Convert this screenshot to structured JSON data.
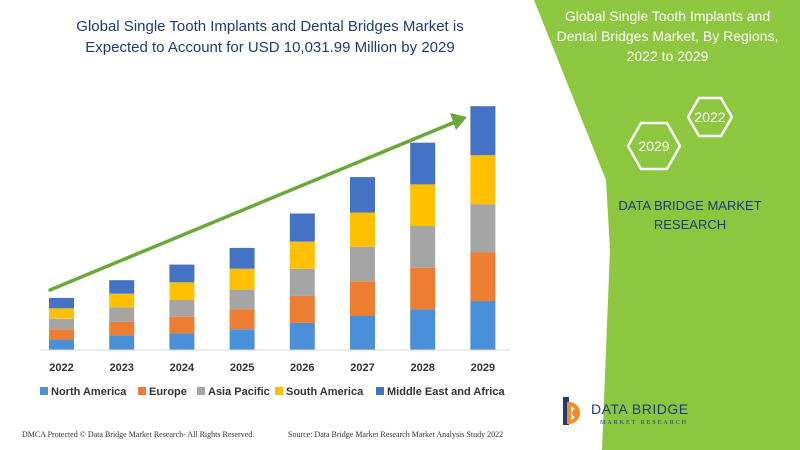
{
  "header": {
    "title_line1": "Global Single Tooth Implants and Dental Bridges Market is",
    "title_line2": "Expected to Account for USD 10,031.99 Million by 2029"
  },
  "panel": {
    "title_line1": "Global Single Tooth Implants and",
    "title_line2": "Dental Bridges Market, By Regions,",
    "title_line3": "2022 to 2029",
    "hex_top": "2022",
    "hex_bottom": "2029",
    "brand_line1": "DATA BRIDGE MARKET",
    "brand_line2": "RESEARCH",
    "bg_color": "#8dc63f"
  },
  "footer": {
    "dmca": "DMCA Protected © Data Bridge Market Research- All Rights Reserved.",
    "source": "Source: Data Bridge Market Research Market Analysis Study 2022"
  },
  "logo": {
    "name": "DATA BRIDGE",
    "tagline": "MARKET RESEARCH"
  },
  "chart_data": {
    "type": "bar",
    "stacked": true,
    "title": "Global Single Tooth Implants and Dental Bridges Market is Expected to Account for USD 10,031.99 Million by 2029",
    "categories": [
      "2022",
      "2023",
      "2024",
      "2025",
      "2026",
      "2027",
      "2028",
      "2029"
    ],
    "series": [
      {
        "name": "North America",
        "color": "#4a90d9",
        "values": [
          10,
          14,
          16,
          20,
          26,
          33,
          39,
          47
        ]
      },
      {
        "name": "Europe",
        "color": "#ed7d31",
        "values": [
          10,
          13,
          16,
          19,
          26,
          33,
          40,
          47
        ]
      },
      {
        "name": "Asia Pacific",
        "color": "#a5a5a5",
        "values": [
          10,
          14,
          16,
          19,
          26,
          33,
          40,
          46
        ]
      },
      {
        "name": "South America",
        "color": "#ffc000",
        "values": [
          10,
          13,
          17,
          20,
          26,
          33,
          40,
          47
        ]
      },
      {
        "name": "Middle East and Africa",
        "color": "#4472c4",
        "values": [
          10,
          13,
          17,
          20,
          27,
          34,
          40,
          47
        ]
      }
    ],
    "ylim": [
      0,
      240
    ],
    "grid": false,
    "legend": "bottom",
    "trend_arrow": true
  }
}
